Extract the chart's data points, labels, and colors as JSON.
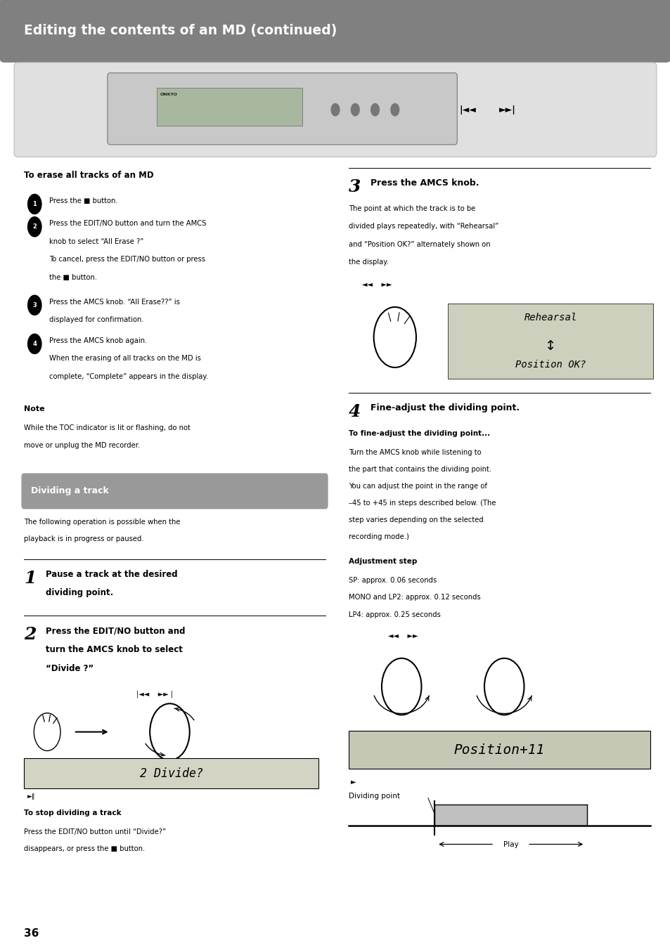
{
  "page_bg": "#ffffff",
  "header_bg": "#808080",
  "header_text": "Editing the contents of an MD (continued)",
  "header_text_color": "#ffffff",
  "section_bg": "#999999",
  "section_text": "Dividing a track",
  "section_text_color": "#ffffff",
  "erase_heading": "To erase all tracks of an MD",
  "erase_steps": [
    "Press the ■ button.",
    "Press the EDIT/NO button and turn the AMCS\nknob to select “All Erase ?”\nTo cancel, press the EDIT/NO button or press\nthe ■ button.",
    "Press the AMCS knob. “All Erase??” is\ndisplayed for confirmation.",
    "Press the AMCS knob again.\nWhen the erasing of all tracks on the MD is\ncomplete, “Complete” appears in the display."
  ],
  "note_heading": "Note",
  "note_text": "While the TOC indicator is lit or flashing, do not\nmove or unplug the MD recorder.",
  "dividing_intro": "The following operation is possible when the\nplayback is in progress or paused.",
  "step1_num": "1",
  "step1_text": "Pause a track at the desired\ndividing point.",
  "step2_num": "2",
  "step2_text": "Press the EDIT/NO button and\nturn the AMCS knob to select\n“Divide ?”",
  "step2_display": "2 Divide?",
  "step2_stop_heading": "To stop dividing a track",
  "step2_stop_text": "Press the EDIT/NO button until “Divide?”\ndisappears, or press the ■ button.",
  "step3_num": "3",
  "step3_text": "Press the AMCS knob.",
  "step3_body": "The point at which the track is to be\ndivided plays repeatedly, with “Rehearsal”\nand “Position OK?” alternately shown on\nthe display.",
  "step3_display1": "Rehearsal",
  "step3_display2": "Position OK?",
  "step4_num": "4",
  "step4_text": "Fine-adjust the dividing point.",
  "step4_subheading": "To fine-adjust the dividing point...",
  "step4_body": "Turn the AMCS knob while listening to\nthe part that contains the dividing point.\nYou can adjust the point in the range of\n–45 to +45 in steps described below. (The\nstep varies depending on the selected\nrecording mode.)",
  "adj_heading": "Adjustment step",
  "adj_lines": [
    "SP: approx. 0.06 seconds",
    "MONO and LP2: approx. 0.12 seconds",
    "LP4: approx. 0.25 seconds"
  ],
  "step4_display": "Position+11",
  "dividing_point_label": "Dividing point",
  "play_label": "Play",
  "page_num": "36"
}
